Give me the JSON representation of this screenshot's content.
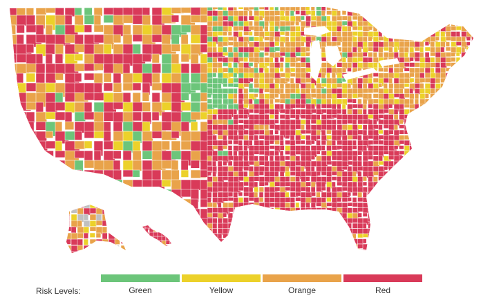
{
  "map": {
    "colors": {
      "green": "#6cc57a",
      "yellow": "#ecd12a",
      "orange": "#e9a34a",
      "red": "#d93a59",
      "no_data": "#c0c0c0",
      "border": "#ffffff"
    }
  },
  "legend": {
    "title": "Risk Levels:",
    "items": [
      {
        "label": "Green",
        "color": "#6cc57a"
      },
      {
        "label": "Yellow",
        "color": "#ecd12a"
      },
      {
        "label": "Orange",
        "color": "#e9a34a"
      },
      {
        "label": "Red",
        "color": "#d93a59"
      }
    ]
  }
}
